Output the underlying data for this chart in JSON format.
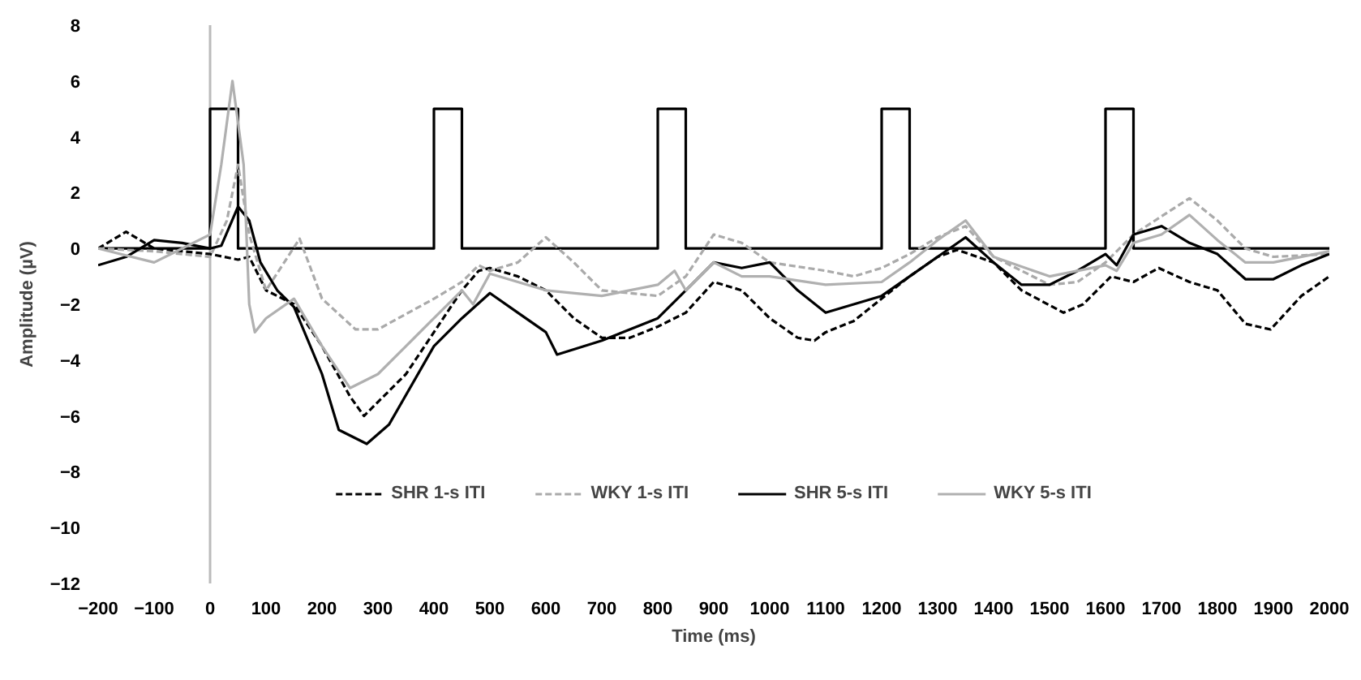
{
  "chart_data": {
    "type": "line",
    "xlabel": "Time (ms)",
    "ylabel": "Amplitude (µV)",
    "xlim": [
      -200,
      2000
    ],
    "xticks": [
      -200,
      -100,
      0,
      100,
      200,
      300,
      400,
      500,
      600,
      700,
      800,
      900,
      1000,
      1100,
      1200,
      1300,
      1400,
      1500,
      1600,
      1700,
      1800,
      1900,
      2000
    ],
    "ylim": [
      -12,
      8
    ],
    "yticks": [
      -12,
      -10,
      -8,
      -6,
      -4,
      -2,
      0,
      2,
      4,
      6,
      8
    ],
    "grid": false,
    "legend": "bottom",
    "marker": "none",
    "ref_lines": [
      {
        "axis": "x",
        "value": 0,
        "color": "#bbbbbb"
      }
    ],
    "series": [
      {
        "color": "#000000",
        "line_style": "solid",
        "x": [
          -200,
          0,
          0,
          50,
          50,
          400,
          400,
          450,
          450,
          800,
          800,
          850,
          850,
          1200,
          1200,
          1250,
          1250,
          1600,
          1600,
          1650,
          1650,
          2000
        ],
        "values": [
          0,
          0,
          5,
          5,
          0,
          0,
          5,
          5,
          0,
          0,
          5,
          5,
          0,
          0,
          5,
          5,
          0,
          0,
          5,
          5,
          0,
          0
        ]
      },
      {
        "name": "SHR 1-s ITI",
        "color": "#000000",
        "line_style": "dashed",
        "x": [
          -200,
          -150,
          -100,
          -50,
          0,
          50,
          70,
          100,
          150,
          200,
          250,
          275,
          300,
          350,
          400,
          450,
          480,
          500,
          550,
          600,
          650,
          700,
          750,
          800,
          850,
          900,
          950,
          1000,
          1050,
          1080,
          1100,
          1150,
          1200,
          1250,
          1300,
          1335,
          1400,
          1450,
          1525,
          1560,
          1610,
          1650,
          1695,
          1750,
          1800,
          1850,
          1895,
          1950,
          2000
        ],
        "values": [
          0,
          0.6,
          0,
          -0.1,
          -0.2,
          -0.4,
          -0.3,
          -1.5,
          -2,
          -3.5,
          -5.3,
          -6,
          -5.5,
          -4.5,
          -3,
          -1.5,
          -0.8,
          -0.7,
          -1,
          -1.5,
          -2.5,
          -3.2,
          -3.2,
          -2.8,
          -2.3,
          -1.2,
          -1.5,
          -2.5,
          -3.2,
          -3.3,
          -3,
          -2.6,
          -1.8,
          -1,
          -0.3,
          -0.05,
          -0.5,
          -1.5,
          -2.3,
          -2,
          -1,
          -1.2,
          -0.7,
          -1.2,
          -1.5,
          -2.7,
          -2.9,
          -1.7,
          -1
        ]
      },
      {
        "name": "WKY 1-s ITI",
        "color": "#aaaaaa",
        "line_style": "dashed",
        "x": [
          -200,
          -100,
          0,
          30,
          50,
          70,
          100,
          160,
          200,
          260,
          300,
          400,
          450,
          480,
          500,
          550,
          600,
          650,
          700,
          800,
          850,
          900,
          950,
          1000,
          1100,
          1150,
          1200,
          1250,
          1300,
          1350,
          1400,
          1500,
          1550,
          1600,
          1650,
          1750,
          1800,
          1850,
          1900,
          2000
        ],
        "values": [
          0,
          -0.1,
          -0.3,
          1,
          3,
          0.5,
          -1.5,
          0.35,
          -1.8,
          -2.9,
          -2.9,
          -1.8,
          -1.2,
          -0.6,
          -0.8,
          -0.5,
          0.4,
          -0.5,
          -1.5,
          -1.7,
          -1,
          0.5,
          0.2,
          -0.5,
          -0.8,
          -1,
          -0.7,
          -0.2,
          0.4,
          0.8,
          -0.3,
          -1.3,
          -1.2,
          -0.5,
          0.5,
          1.8,
          1,
          0,
          -0.3,
          -0.2
        ]
      },
      {
        "name": "SHR 5-s ITI",
        "color": "#000000",
        "line_style": "solid",
        "x": [
          -200,
          -150,
          -100,
          -50,
          0,
          20,
          50,
          70,
          90,
          120,
          150,
          200,
          230,
          280,
          320,
          400,
          450,
          500,
          550,
          600,
          620,
          700,
          800,
          850,
          900,
          950,
          1000,
          1050,
          1100,
          1150,
          1200,
          1250,
          1300,
          1350,
          1400,
          1450,
          1500,
          1550,
          1600,
          1620,
          1650,
          1700,
          1750,
          1800,
          1850,
          1900,
          1950,
          2000
        ],
        "values": [
          -0.6,
          -0.3,
          0.3,
          0.2,
          0,
          0.1,
          1.5,
          1,
          -0.5,
          -1.5,
          -2.1,
          -4.5,
          -6.5,
          -7,
          -6.3,
          -3.5,
          -2.5,
          -1.6,
          -2.3,
          -3,
          -3.8,
          -3.3,
          -2.5,
          -1.5,
          -0.5,
          -0.7,
          -0.5,
          -1.5,
          -2.3,
          -2,
          -1.7,
          -1,
          -0.3,
          0.4,
          -0.5,
          -1.3,
          -1.3,
          -0.8,
          -0.2,
          -0.6,
          0.5,
          0.8,
          0.2,
          -0.2,
          -1.1,
          -1.1,
          -0.6,
          -0.2
        ]
      },
      {
        "name": "WKY 5-s ITI",
        "color": "#b0b0b0",
        "line_style": "solid",
        "x": [
          -200,
          -100,
          -50,
          0,
          20,
          40,
          60,
          70,
          80,
          100,
          150,
          200,
          250,
          300,
          350,
          400,
          450,
          470,
          500,
          550,
          600,
          700,
          800,
          830,
          850,
          900,
          950,
          1000,
          1100,
          1200,
          1250,
          1300,
          1350,
          1400,
          1500,
          1600,
          1620,
          1650,
          1700,
          1750,
          1800,
          1850,
          1900,
          2000
        ],
        "values": [
          0,
          -0.5,
          0,
          0.5,
          3,
          6,
          3,
          -2,
          -3,
          -2.5,
          -1.8,
          -3.5,
          -5,
          -4.5,
          -3.5,
          -2.5,
          -1.5,
          -2,
          -0.9,
          -1.2,
          -1.5,
          -1.7,
          -1.3,
          -0.8,
          -1.5,
          -0.5,
          -1,
          -1,
          -1.3,
          -1.2,
          -0.5,
          0.3,
          1,
          -0.3,
          -1,
          -0.6,
          -0.8,
          0.2,
          0.5,
          1.2,
          0.3,
          -0.5,
          -0.5,
          -0.1
        ]
      }
    ]
  }
}
